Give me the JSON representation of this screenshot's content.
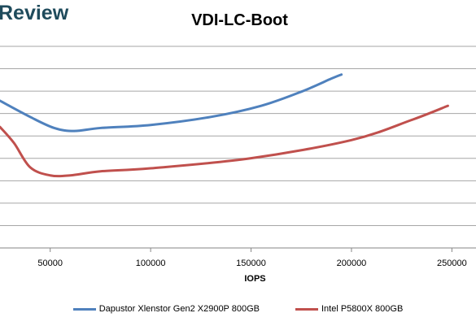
{
  "logo_text": "Review",
  "chart_data": {
    "type": "line",
    "title": "VDI-LC-Boot",
    "xlabel": "IOPS",
    "ylabel": "",
    "xlim": [
      25000,
      262000
    ],
    "ylim": [
      0,
      10
    ],
    "grid": true,
    "x_ticks": [
      50000,
      100000,
      150000,
      200000,
      250000
    ],
    "x_tick_labels": [
      "50000",
      "100000",
      "150000",
      "200000",
      "250000"
    ],
    "legend_position": "bottom",
    "series": [
      {
        "name": "Dapustor Xlenstor Gen2 X2900P 800GB",
        "color": "#4f81bd",
        "x": [
          25000,
          40000,
          52000,
          62000,
          75000,
          100000,
          130000,
          155000,
          175000,
          190000,
          195000
        ],
        "y": [
          7.3,
          6.5,
          5.95,
          5.8,
          5.95,
          6.1,
          6.5,
          7.05,
          7.75,
          8.4,
          8.6
        ]
      },
      {
        "name": "Intel P5800X 800GB",
        "color": "#c0504d",
        "x": [
          25000,
          32000,
          40000,
          50000,
          60000,
          75000,
          100000,
          150000,
          200000,
          230000,
          248000
        ],
        "y": [
          6.0,
          5.2,
          4.0,
          3.6,
          3.6,
          3.8,
          3.95,
          4.45,
          5.35,
          6.35,
          7.05
        ]
      }
    ]
  }
}
